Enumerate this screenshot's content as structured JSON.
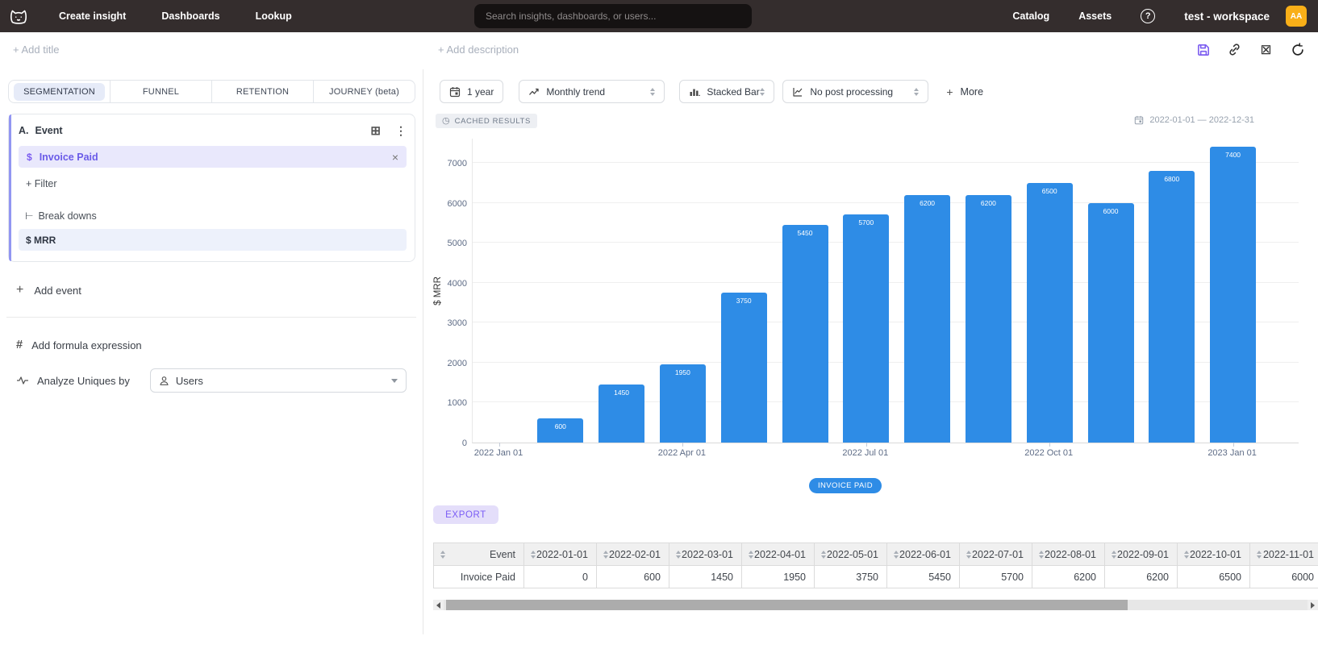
{
  "colors": {
    "navbar": "#342D2D",
    "accent_purple": "#7B5CF0",
    "bar_blue": "#2E8CE6",
    "avatar_bg": "#F9AF18",
    "active_tab_bg": "#E6EBF8",
    "event_row_bg": "#E9E8FC",
    "breakdown_row_bg": "#EDF1FB"
  },
  "nav": {
    "items": [
      {
        "label": "Create insight"
      },
      {
        "label": "Dashboards"
      },
      {
        "label": "Lookup"
      }
    ],
    "search_placeholder": "Search insights, dashboards, or users...",
    "right_items": [
      {
        "label": "Catalog"
      },
      {
        "label": "Assets"
      }
    ],
    "help_label": "?",
    "workspace": "test - workspace",
    "avatar_initials": "AA"
  },
  "toolbar": {
    "add_title": "+ Add title",
    "add_description": "+ Add description"
  },
  "analysis_tabs": {
    "items": [
      {
        "label": "SEGMENTATION",
        "active": true
      },
      {
        "label": "FUNNEL",
        "active": false
      },
      {
        "label": "RETENTION",
        "active": false
      },
      {
        "label": "JOURNEY (beta)",
        "active": false
      }
    ]
  },
  "event_builder": {
    "section_prefix": "A.",
    "section_label": "Event",
    "event_row": {
      "prefix": "$",
      "label": "Invoice Paid",
      "close": "×"
    },
    "filter_label": "+ Filter",
    "breakdown_icon": "⊢",
    "breakdown_label": "Break downs",
    "breakdown_value": "$ MRR",
    "add_event_plus": "+",
    "add_event_label": "Add event",
    "formula_icon": "#",
    "add_formula_label": "Add formula expression",
    "analyze_label": "Analyze Uniques by",
    "analyze_value": "Users"
  },
  "controls": {
    "range_label": "1 year",
    "trend_label": "Monthly trend",
    "chart_type_label": "Stacked Bar",
    "post_processing_label": "No post processing",
    "more_plus": "+",
    "more_label": "More"
  },
  "results_header": {
    "cached_label": "CACHED RESULTS",
    "clock_glyph": "◷",
    "date_range": "2022-01-01 — 2022-12-31"
  },
  "chart_data": {
    "type": "bar",
    "x": [
      "2022-01-01",
      "2022-02-01",
      "2022-03-01",
      "2022-04-01",
      "2022-05-01",
      "2022-06-01",
      "2022-07-01",
      "2022-08-01",
      "2022-09-01",
      "2022-10-01",
      "2022-11-01",
      "2022-12-01",
      "2023-01-01"
    ],
    "values": [
      0,
      600,
      1450,
      1950,
      3750,
      5450,
      5700,
      6200,
      6200,
      6500,
      6000,
      6800,
      7400
    ],
    "title": "",
    "xlabel": "",
    "ylabel": "$ MRR",
    "ylim": [
      0,
      7625
    ],
    "yticks": [
      0,
      1000,
      2000,
      3000,
      4000,
      5000,
      6000,
      7000
    ],
    "xtick_labels": [
      "2022 Jan 01",
      "2022 Apr 01",
      "2022 Jul 01",
      "2022 Oct 01",
      "2023 Jan 01"
    ],
    "xtick_indices": [
      0,
      3,
      6,
      9,
      12
    ],
    "grid": true,
    "legend": [
      "INVOICE PAID"
    ],
    "legend_position": "bottom",
    "bar_color": "#2E8CE6"
  },
  "export_label": "EXPORT",
  "table": {
    "headers": [
      "Event",
      "2022-01-01",
      "2022-02-01",
      "2022-03-01",
      "2022-04-01",
      "2022-05-01",
      "2022-06-01",
      "2022-07-01",
      "2022-08-01",
      "2022-09-01",
      "2022-10-01",
      "2022-11-01"
    ],
    "rows": [
      [
        "Invoice Paid",
        "0",
        "600",
        "1450",
        "1950",
        "3750",
        "5450",
        "5700",
        "6200",
        "6200",
        "6500",
        "6000"
      ]
    ]
  }
}
